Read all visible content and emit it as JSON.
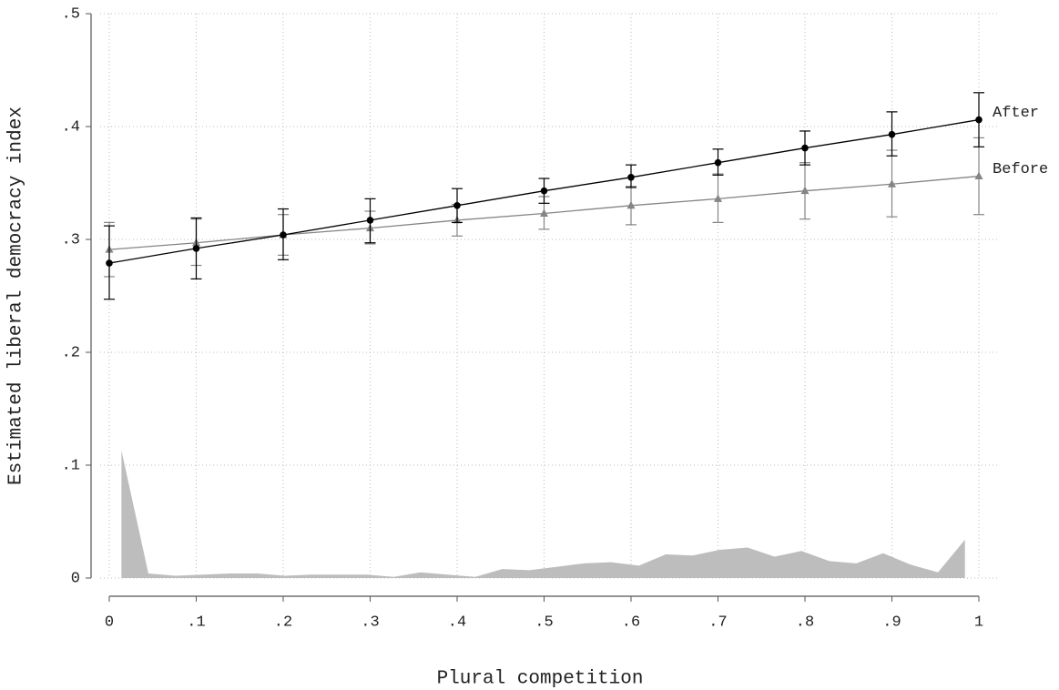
{
  "chart_data": {
    "type": "line",
    "x_label": "Plural competition",
    "y_label": "Estimated liberal democracy index",
    "xlim": [
      0,
      1
    ],
    "ylim": [
      0,
      0.5
    ],
    "xticks": [
      0,
      {
        "value": 0.1,
        "label": ".1"
      },
      {
        "value": 0.2,
        "label": ".2"
      },
      {
        "value": 0.3,
        "label": ".3"
      },
      {
        "value": 0.4,
        "label": ".4"
      },
      {
        "value": 0.5,
        "label": ".5"
      },
      {
        "value": 0.6,
        "label": ".6"
      },
      {
        "value": 0.7,
        "label": ".7"
      },
      {
        "value": 0.8,
        "label": ".8"
      },
      {
        "value": 0.9,
        "label": ".9"
      },
      1
    ],
    "yticks": [
      0,
      {
        "value": 0.1,
        "label": ".1"
      },
      {
        "value": 0.2,
        "label": ".2"
      },
      {
        "value": 0.3,
        "label": ".3"
      },
      {
        "value": 0.4,
        "label": ".4"
      },
      {
        "value": 0.5,
        "label": ".5"
      }
    ],
    "grid": true,
    "x": [
      0,
      0.1,
      0.2,
      0.3,
      0.4,
      0.5,
      0.6,
      0.7,
      0.8,
      0.9,
      1
    ],
    "series": [
      {
        "name": "After",
        "color": "#000000",
        "marker": "circle",
        "values": [
          0.279,
          0.292,
          0.304,
          0.317,
          0.33,
          0.343,
          0.355,
          0.368,
          0.381,
          0.393,
          0.406
        ],
        "lower": [
          0.247,
          0.265,
          0.282,
          0.297,
          0.315,
          0.332,
          0.346,
          0.357,
          0.366,
          0.374,
          0.382
        ],
        "upper": [
          0.312,
          0.319,
          0.327,
          0.336,
          0.345,
          0.354,
          0.366,
          0.38,
          0.396,
          0.413,
          0.43
        ]
      },
      {
        "name": "Before",
        "color": "#858585",
        "marker": "triangle",
        "values": [
          0.291,
          0.297,
          0.304,
          0.31,
          0.317,
          0.323,
          0.33,
          0.336,
          0.343,
          0.349,
          0.356
        ],
        "lower": [
          0.267,
          0.277,
          0.286,
          0.296,
          0.303,
          0.309,
          0.313,
          0.315,
          0.318,
          0.32,
          0.322
        ],
        "upper": [
          0.315,
          0.318,
          0.322,
          0.325,
          0.331,
          0.338,
          0.347,
          0.358,
          0.368,
          0.379,
          0.39
        ]
      }
    ],
    "histogram": {
      "color": "#bdbdbd",
      "x": [
        0.014,
        0.045,
        0.076,
        0.108,
        0.139,
        0.17,
        0.202,
        0.233,
        0.264,
        0.296,
        0.327,
        0.358,
        0.389,
        0.421,
        0.452,
        0.483,
        0.515,
        0.546,
        0.577,
        0.609,
        0.64,
        0.671,
        0.702,
        0.734,
        0.765,
        0.796,
        0.828,
        0.859,
        0.89,
        0.921,
        0.953,
        0.984
      ],
      "values": [
        0.113,
        0.004,
        0.002,
        0.003,
        0.004,
        0.004,
        0.002,
        0.003,
        0.003,
        0.003,
        0.001,
        0.005,
        0.003,
        0.001,
        0.008,
        0.007,
        0.01,
        0.013,
        0.014,
        0.011,
        0.021,
        0.02,
        0.025,
        0.027,
        0.019,
        0.024,
        0.015,
        0.013,
        0.022,
        0.012,
        0.005,
        0.034
      ]
    }
  }
}
